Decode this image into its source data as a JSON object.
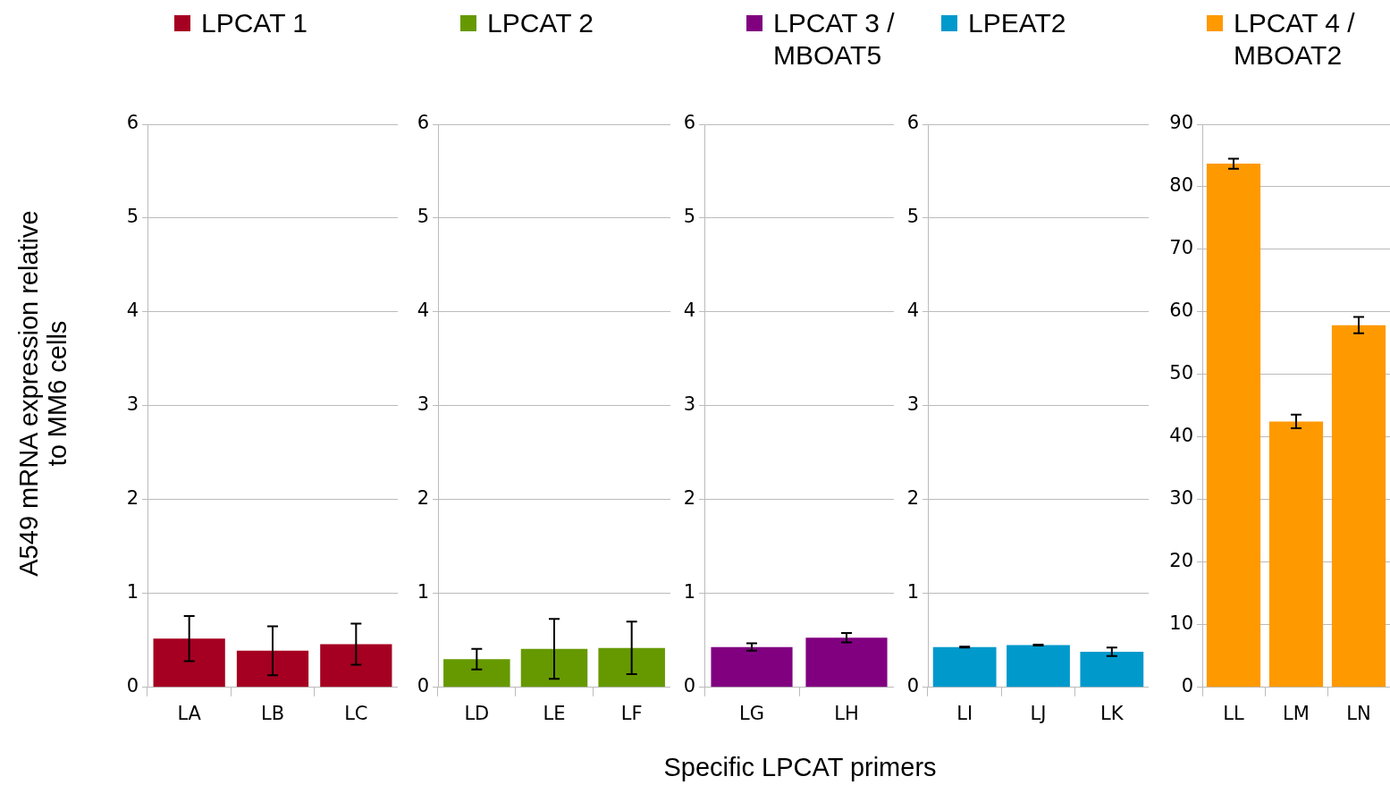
{
  "chart_data": [
    {
      "type": "bar",
      "ylabel": "A549 mRNA expression relative to MM6 cells",
      "categories": [
        "LA",
        "LB",
        "LC"
      ],
      "series": [
        {
          "name": "LPCAT 1",
          "color": "#a50021",
          "values": [
            0.52,
            0.39,
            0.46
          ],
          "errors": [
            0.24,
            0.26,
            0.22
          ]
        }
      ],
      "ylim": [
        0,
        6
      ],
      "yticks": [
        0,
        1,
        2,
        3,
        4,
        5,
        6
      ],
      "grid": "y",
      "legend": "top"
    },
    {
      "type": "bar",
      "categories": [
        "LD",
        "LE",
        "LF"
      ],
      "series": [
        {
          "name": "LPCAT 2",
          "color": "#669900",
          "values": [
            0.3,
            0.41,
            0.42
          ],
          "errors": [
            0.11,
            0.32,
            0.28
          ]
        }
      ],
      "ylim": [
        0,
        6
      ],
      "yticks": [
        0,
        1,
        2,
        3,
        4,
        5,
        6
      ],
      "grid": "y",
      "legend": "top"
    },
    {
      "type": "bar",
      "xlabel": "Specific LPCAT primers",
      "categories": [
        "LG",
        "LH"
      ],
      "series": [
        {
          "name": "LPCAT 3 / MBOAT5",
          "color": "#800080",
          "values": [
            0.43,
            0.53
          ],
          "errors": [
            0.04,
            0.05
          ]
        }
      ],
      "ylim": [
        0,
        6
      ],
      "yticks": [
        0,
        1,
        2,
        3,
        4,
        5,
        6
      ],
      "grid": "y",
      "legend": "top"
    },
    {
      "type": "bar",
      "categories": [
        "LI",
        "LJ",
        "LK"
      ],
      "series": [
        {
          "name": "LPEAT2",
          "color": "#0099cc",
          "values": [
            0.43,
            0.45,
            0.38
          ],
          "errors": [
            0.005,
            0.005,
            0.045
          ]
        }
      ],
      "ylim": [
        0,
        6
      ],
      "yticks": [
        0,
        1,
        2,
        3,
        4,
        5,
        6
      ],
      "grid": "y",
      "legend": "top"
    },
    {
      "type": "bar",
      "categories": [
        "LL",
        "LM",
        "LN"
      ],
      "series": [
        {
          "name": "LPCAT 4 / MBOAT2",
          "color": "#ff9900",
          "values": [
            83.7,
            42.5,
            57.9
          ],
          "errors": [
            0.8,
            1.1,
            1.3
          ]
        }
      ],
      "ylim": [
        0,
        90
      ],
      "yticks": [
        0,
        10,
        20,
        30,
        40,
        50,
        60,
        70,
        80,
        90
      ],
      "grid": "y",
      "legend": "top"
    }
  ]
}
